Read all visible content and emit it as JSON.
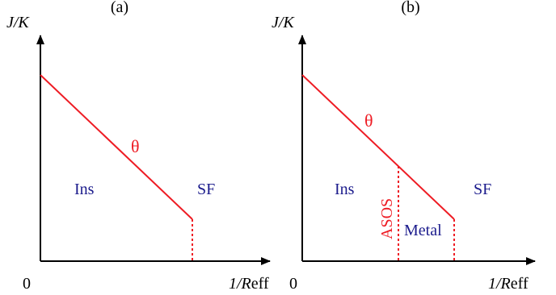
{
  "panels": [
    {
      "label": "(a)",
      "y_axis_label": "J/K",
      "x_axis_label_main": "1/R",
      "x_axis_label_sub": "eff",
      "origin_label": "0",
      "line_label": "θ",
      "regions": {
        "left": "Ins",
        "right": "SF"
      }
    },
    {
      "label": "(b)",
      "y_axis_label": "J/K",
      "x_axis_label_main": "1/R",
      "x_axis_label_sub": "eff",
      "origin_label": "0",
      "line_label": "θ",
      "regions": {
        "left": "Ins",
        "right": "SF",
        "middle": "Metal",
        "boundary": "ASOS"
      }
    }
  ],
  "colors": {
    "axis": "#000000",
    "boundary_line": "#ee1c24",
    "region_text": "#1b1b8c",
    "boundary_text": "#ee1c24"
  }
}
